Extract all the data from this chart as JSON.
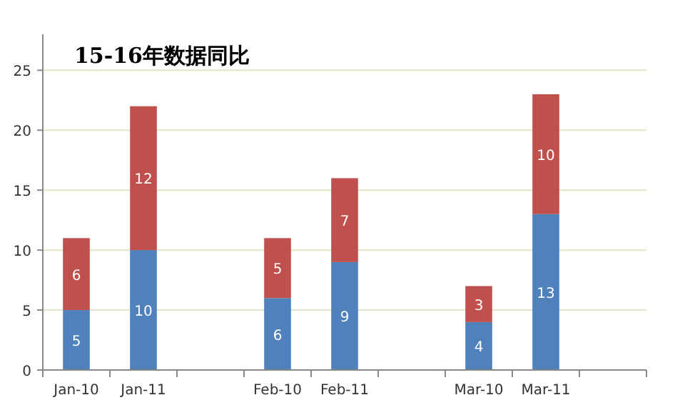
{
  "chart_data": {
    "type": "bar",
    "title": "15-16年数据同比",
    "stacked": true,
    "data_labels": true,
    "grid": "y",
    "categories": [
      "Jan-10",
      "Jan-11",
      null,
      "Feb-10",
      "Feb-11",
      null,
      "Mar-10",
      "Mar-11",
      null
    ],
    "series": [
      {
        "color": "#4f81bd",
        "values": [
          5,
          10,
          null,
          6,
          9,
          null,
          4,
          13,
          null
        ]
      },
      {
        "color": "#c0504d",
        "values": [
          6,
          12,
          null,
          5,
          7,
          null,
          3,
          10,
          null
        ]
      }
    ],
    "ylim": [
      0,
      28
    ],
    "yticks": [
      0,
      5,
      10,
      15,
      20,
      25
    ]
  }
}
